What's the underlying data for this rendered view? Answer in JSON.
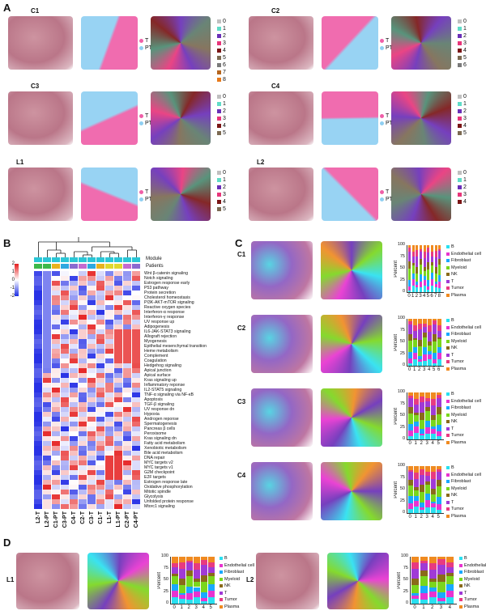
{
  "panels": {
    "A": "A",
    "B": "B",
    "C": "C",
    "D": "D"
  },
  "panel_a": {
    "samples": [
      {
        "name": "C1",
        "clusters": [
          "0",
          "1",
          "2",
          "3",
          "4",
          "5",
          "6",
          "7",
          "8"
        ]
      },
      {
        "name": "C2",
        "clusters": [
          "0",
          "1",
          "2",
          "3",
          "4",
          "5",
          "6"
        ]
      },
      {
        "name": "C3",
        "clusters": [
          "0",
          "1",
          "2",
          "3",
          "4",
          "5"
        ]
      },
      {
        "name": "C4",
        "clusters": [
          "0",
          "1",
          "2",
          "3",
          "4",
          "5"
        ]
      },
      {
        "name": "L1",
        "clusters": [
          "0",
          "1",
          "2",
          "3",
          "4",
          "5"
        ]
      },
      {
        "name": "L2",
        "clusters": [
          "0",
          "1",
          "2",
          "3",
          "4"
        ]
      }
    ],
    "tpt_legend": [
      "T",
      "PT"
    ],
    "cluster_colors": [
      "#c0c0c0",
      "#5fdcc8",
      "#6a2fb8",
      "#e8357a",
      "#7a1515",
      "#7c6a52",
      "#7a7a7a",
      "#b5651d",
      "#e87a1a"
    ]
  },
  "panel_b": {
    "row_header_module": "Module",
    "row_header_patients": "Patients",
    "color_scale_ticks": [
      "2",
      "1",
      "0",
      "-1",
      "-2"
    ],
    "columns": [
      "L2-T",
      "L2-PT",
      "C1-PT",
      "C3-PT",
      "C4-T",
      "C2-T",
      "C3-T",
      "C1-T",
      "L1-T",
      "L1-PT",
      "C2-PT",
      "C4-PT"
    ],
    "pathways": [
      "Wnt β-catenin signaling",
      "Notch signaling",
      "Estrogen response early",
      "P53 pathway",
      "Protein secretion",
      "Cholesterol homeostasis",
      "PI3K-AKT-mTOR signaling",
      "Reactive oxygen species",
      "Interferon-α response",
      "Interferon-γ response",
      "UV response up",
      "Adipogenesis",
      "IL6-JAK-STAT3 signaling",
      "Allograft rejection",
      "Myogenesis",
      "Epithelial mesenchymal transition",
      "Heme metabolism",
      "Complement",
      "Coagulation",
      "Hedgehog signaling",
      "Apical junction",
      "Apical surface",
      "Kras signaling up",
      "Inflammatory reponse",
      "IL2-STAT5 signaling",
      "TNF-α signaling via NF-κB",
      "Apoptosis",
      "TGF-β signaling",
      "UV response dn",
      "Hypoxia",
      "Androgen reponse",
      "Spermatogenesis",
      "Pancreas β cells",
      "Peroxisome",
      "Kras signaling dn",
      "Fatty acid metabolism",
      "Xenobiotic metabolism",
      "Bile acid metabolism",
      "DNA repair",
      "MYC targets v2",
      "MYC targets v1",
      "G2M checkpoint",
      "E2F targets",
      "Estrogen response late",
      "Oxidative phosphorylation",
      "Mitotic spindle",
      "Glycolysis",
      "Unfolded protein response",
      "Mtorc1 signaling"
    ]
  },
  "panel_c": {
    "samples": [
      "C1",
      "C2",
      "C3",
      "C4"
    ],
    "ylabel": "Percent",
    "yticks": [
      "100",
      "75",
      "50",
      "25",
      "0"
    ],
    "legend": [
      "B",
      "Endothelial cell",
      "Fibroblast",
      "Myeloid",
      "NK",
      "T",
      "Tumor",
      "Plasma"
    ],
    "colors": [
      "#29e0f0",
      "#e833d0",
      "#19a9ff",
      "#7ad61c",
      "#8a6a1a",
      "#a03ad6",
      "#e83a80",
      "#f08a20"
    ],
    "xticks": [
      [
        "0",
        "1",
        "2",
        "3",
        "4",
        "5",
        "6",
        "7",
        "8"
      ],
      [
        "0",
        "1",
        "2",
        "3",
        "4",
        "5",
        "6"
      ],
      [
        "0",
        "1",
        "2",
        "3",
        "4",
        "5"
      ],
      [
        "0",
        "1",
        "2",
        "3",
        "4",
        "5"
      ]
    ]
  },
  "panel_d": {
    "samples": [
      "L1",
      "L2"
    ],
    "ylabel": "Percent",
    "yticks": [
      "100",
      "75",
      "50",
      "25",
      "0"
    ],
    "legend": [
      "B",
      "Endothelial cell",
      "Fibroblast",
      "Myeloid",
      "NK",
      "T",
      "Tumor",
      "Plasma"
    ],
    "xticks": [
      [
        "0",
        "1",
        "2",
        "3",
        "4",
        "5"
      ],
      [
        "0",
        "1",
        "2",
        "3",
        "4"
      ]
    ]
  }
}
